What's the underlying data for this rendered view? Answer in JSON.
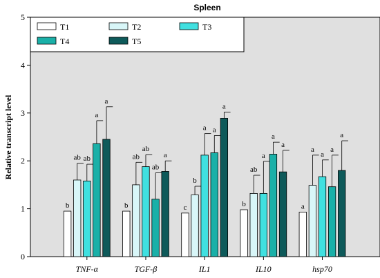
{
  "chart_data": {
    "type": "bar",
    "title": "Spleen",
    "ylabel": "Relative transcript level",
    "xlabel": "",
    "ylim": [
      0,
      5
    ],
    "yticks": [
      0,
      1,
      2,
      3,
      4,
      5
    ],
    "grid": false,
    "legend_position": "top-left",
    "categories": [
      "TNF-α",
      "TGF-β",
      "IL1",
      "IL10",
      "hsp70"
    ],
    "series": [
      {
        "name": "T1",
        "color": "#ffffff",
        "values": [
          0.95,
          0.95,
          0.91,
          0.98,
          0.93
        ],
        "errors": [
          0,
          0,
          0,
          0,
          0
        ],
        "sig": [
          "b",
          "b",
          "c",
          "b",
          "a"
        ]
      },
      {
        "name": "T2",
        "color": "#d8f6f8",
        "values": [
          1.6,
          1.5,
          1.29,
          1.32,
          1.49
        ],
        "errors": [
          0.35,
          0.47,
          0.18,
          0.38,
          0.63
        ],
        "sig": [
          "ab",
          "ab",
          "b",
          "ab",
          "a"
        ]
      },
      {
        "name": "T3",
        "color": "#40e0e0",
        "values": [
          1.58,
          1.88,
          2.12,
          1.32,
          1.67
        ],
        "errors": [
          0.35,
          0.25,
          0.45,
          0.67,
          0.35
        ],
        "sig": [
          "ab",
          "ab",
          "a",
          "a",
          "a"
        ]
      },
      {
        "name": "T4",
        "color": "#1ab0a8",
        "values": [
          2.36,
          1.2,
          2.17,
          2.14,
          1.46
        ],
        "errors": [
          0.48,
          0.55,
          0.36,
          0.25,
          0.66
        ],
        "sig": [
          "a",
          "ab",
          "a",
          "a",
          "a"
        ]
      },
      {
        "name": "T5",
        "color": "#0e5a5a",
        "values": [
          2.45,
          1.78,
          2.89,
          1.77,
          1.8
        ],
        "errors": [
          0.68,
          0.22,
          0.13,
          0.45,
          0.62
        ],
        "sig": [
          "a",
          "a",
          "a",
          "a",
          "a"
        ]
      }
    ]
  }
}
